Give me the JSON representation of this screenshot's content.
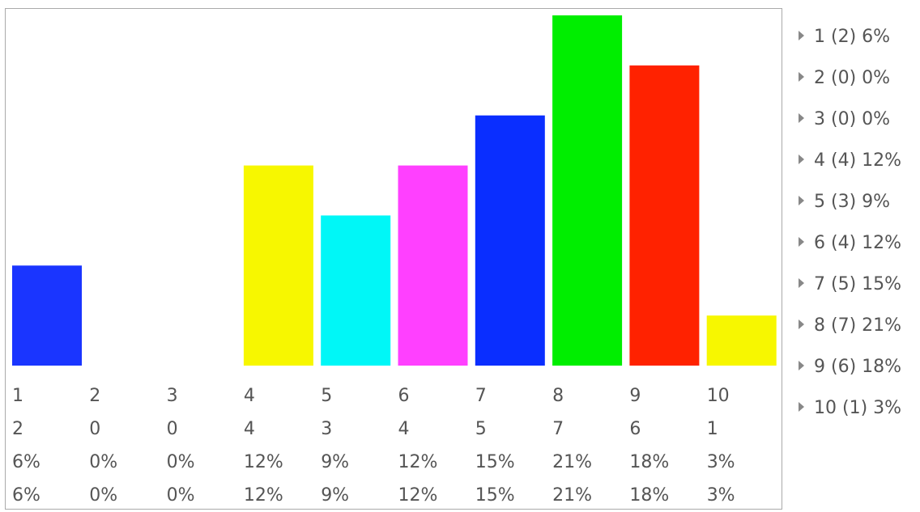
{
  "chart_data": {
    "type": "bar",
    "categories": [
      "1",
      "2",
      "3",
      "4",
      "5",
      "6",
      "7",
      "8",
      "9",
      "10"
    ],
    "values": [
      2,
      0,
      0,
      4,
      3,
      4,
      5,
      7,
      6,
      1
    ],
    "percentages": [
      "6%",
      "0%",
      "0%",
      "12%",
      "9%",
      "12%",
      "15%",
      "21%",
      "18%",
      "3%"
    ],
    "colors": [
      "#1a35ff",
      "#1a35ff",
      "#1a35ff",
      "#f7f700",
      "#00f7f7",
      "#ff40ff",
      "#0a2eff",
      "#00ee00",
      "#ff2200",
      "#f7f700"
    ],
    "ylim": [
      0,
      7
    ],
    "grid": false,
    "legend_position": "right",
    "table": {
      "rows": [
        [
          "1",
          "2",
          "3",
          "4",
          "5",
          "6",
          "7",
          "8",
          "9",
          "10"
        ],
        [
          "2",
          "0",
          "0",
          "4",
          "3",
          "4",
          "5",
          "7",
          "6",
          "1"
        ],
        [
          "6%",
          "0%",
          "0%",
          "12%",
          "9%",
          "12%",
          "15%",
          "21%",
          "18%",
          "3%"
        ],
        [
          "6%",
          "0%",
          "0%",
          "12%",
          "9%",
          "12%",
          "15%",
          "21%",
          "18%",
          "3%"
        ]
      ]
    },
    "legend": [
      "1 (2) 6%",
      "2 (0) 0%",
      "3 (0) 0%",
      "4 (4) 12%",
      "5 (3) 9%",
      "6 (4) 12%",
      "7 (5) 15%",
      "8 (7) 21%",
      "9 (6) 18%",
      "10 (1) 3%"
    ]
  }
}
